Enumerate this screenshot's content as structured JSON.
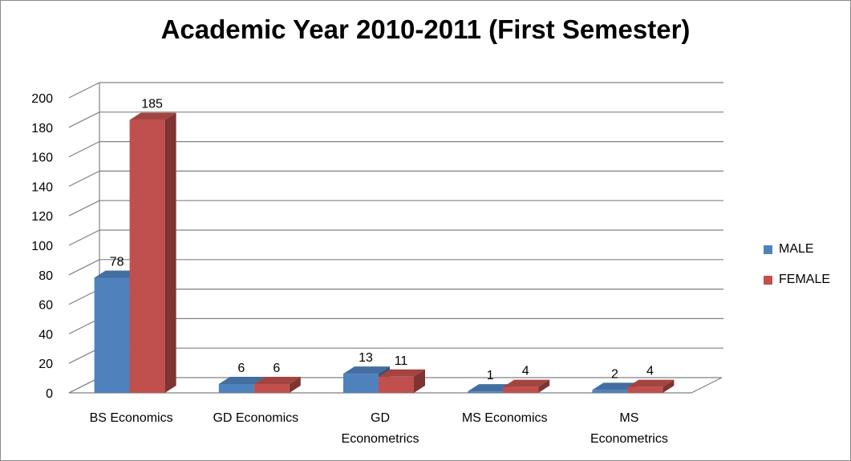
{
  "chart_data": {
    "type": "bar",
    "title": "Academic Year 2010-2011 (First Semester)",
    "categories": [
      [
        "BS Economics"
      ],
      [
        "GD Economics"
      ],
      [
        "GD",
        "Econometrics"
      ],
      [
        "MS Economics"
      ],
      [
        "MS",
        "Econometrics"
      ]
    ],
    "series": [
      {
        "name": "MALE",
        "values": [
          78,
          6,
          13,
          1,
          2
        ],
        "color": "#4f81bd"
      },
      {
        "name": "FEMALE",
        "values": [
          185,
          6,
          11,
          4,
          4
        ],
        "color": "#c0504d"
      }
    ],
    "ylim": [
      0,
      200
    ],
    "yticks": [
      "0",
      "20",
      "40",
      "60",
      "80",
      "100",
      "120",
      "140",
      "160",
      "180",
      "200"
    ],
    "grid": true,
    "legend_position": "right",
    "style": "3d-clustered-column"
  }
}
